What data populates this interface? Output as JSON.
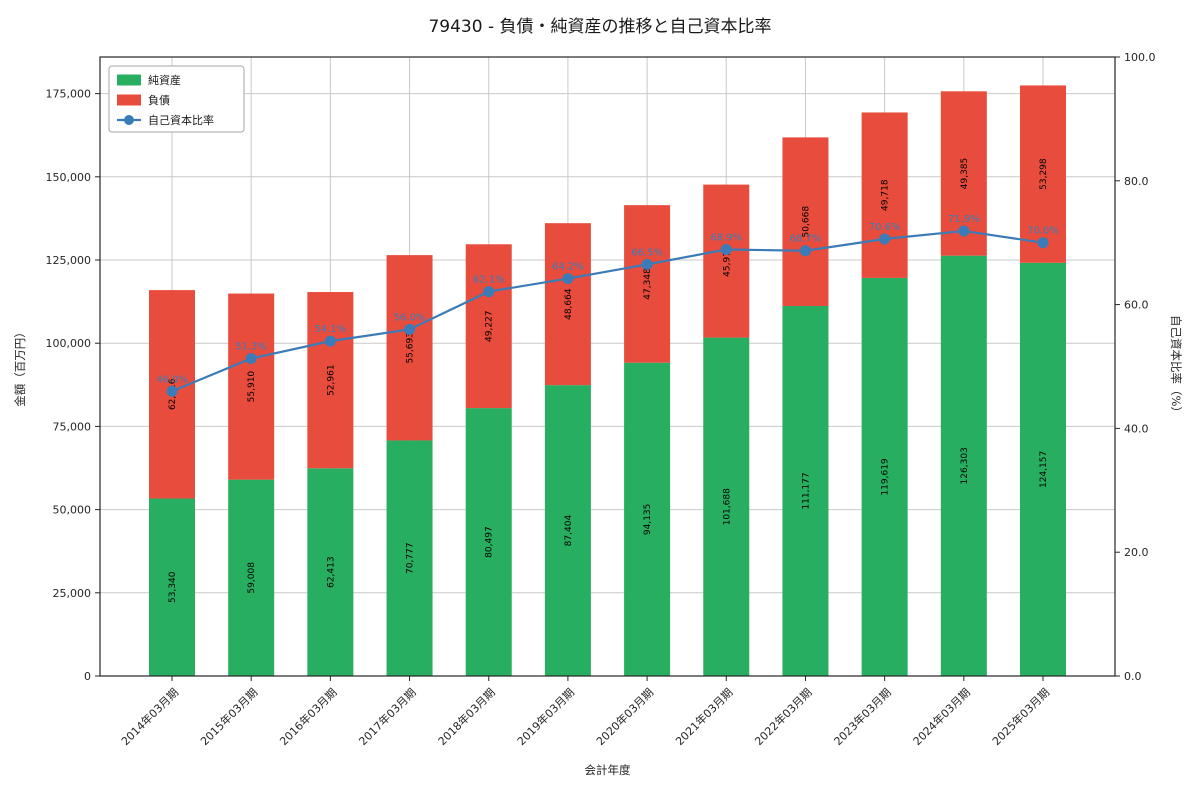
{
  "chart_data": {
    "type": "bar",
    "subtype": "stacked-bar-with-line",
    "title": "79430 - 負債・純資産の推移と自己資本比率",
    "xlabel": "会計年度",
    "ylabel_left": "金額（百万円）",
    "ylabel_right": "自己資本比率（%）",
    "categories": [
      "2014年03月期",
      "2015年03月期",
      "2016年03月期",
      "2017年03月期",
      "2018年03月期",
      "2019年03月期",
      "2020年03月期",
      "2021年03月期",
      "2022年03月期",
      "2023年03月期",
      "2024年03月期",
      "2025年03月期"
    ],
    "series": [
      {
        "name": "純資産",
        "type": "bar",
        "color": "#27ae60",
        "values": [
          53340,
          59008,
          62413,
          70777,
          80497,
          87404,
          94135,
          101688,
          111177,
          119619,
          126303,
          124157
        ]
      },
      {
        "name": "負債",
        "type": "bar",
        "color": "#e74c3c",
        "values": [
          62616,
          55910,
          52961,
          55693,
          49227,
          48664,
          47348,
          45973,
          50668,
          49718,
          49385,
          53298
        ]
      },
      {
        "name": "自己資本比率",
        "type": "line",
        "axis": "right",
        "color": "#3b7cb8",
        "values": [
          46.0,
          51.3,
          54.1,
          56.0,
          62.1,
          64.2,
          66.5,
          68.9,
          68.7,
          70.6,
          71.9,
          70.0
        ]
      }
    ],
    "ylim_left": [
      0,
      186000
    ],
    "yticks_left": [
      0,
      25000,
      50000,
      75000,
      100000,
      125000,
      150000,
      175000
    ],
    "ylim_right": [
      0,
      100
    ],
    "yticks_right": [
      0,
      20,
      40,
      60,
      80,
      100
    ],
    "grid": true,
    "legend_position": "upper-left",
    "colors": {
      "grid": "#c9c9c9",
      "axis": "#262626",
      "bar_label": "#000000",
      "tick_label": "#262626",
      "background": "#ffffff"
    }
  }
}
